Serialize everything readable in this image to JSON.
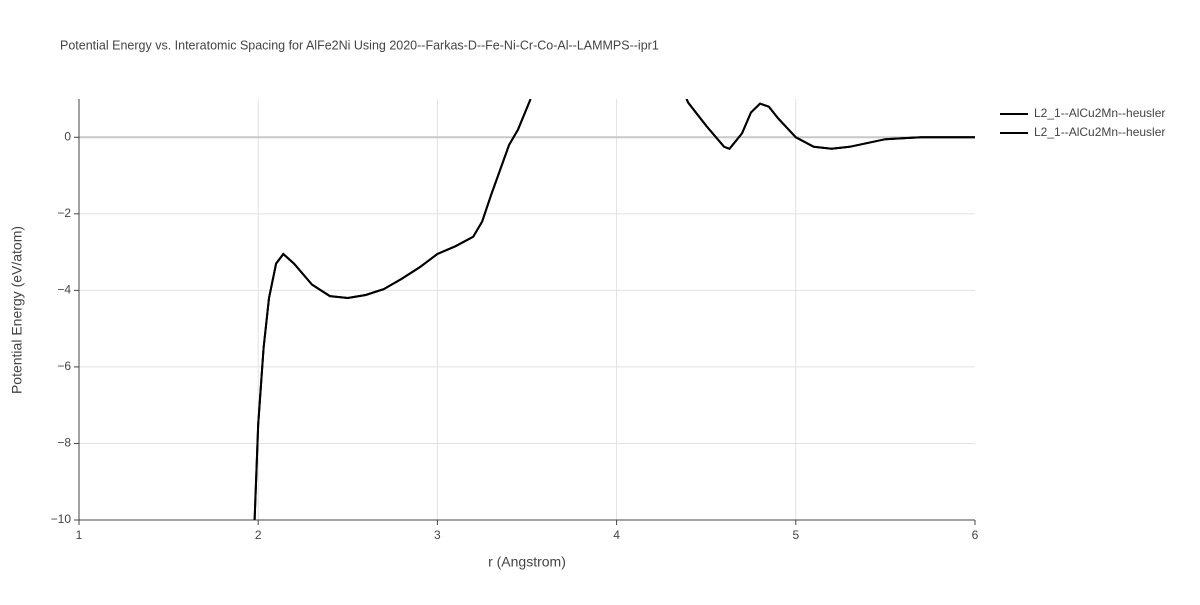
{
  "chart_data": {
    "type": "line",
    "title": "Potential Energy vs. Interatomic Spacing for AlFe2Ni Using 2020--Farkas-D--Fe-Ni-Cr-Co-Al--LAMMPS--ipr1",
    "xlabel": "r (Angstrom)",
    "ylabel": "Potential Energy (eV/atom)",
    "x": [
      1.98,
      2.0,
      2.03,
      2.06,
      2.1,
      2.14,
      2.2,
      2.3,
      2.4,
      2.5,
      2.6,
      2.7,
      2.8,
      2.9,
      3.0,
      3.1,
      3.2,
      3.25,
      3.3,
      3.4,
      3.45,
      3.52,
      null,
      4.39,
      4.4,
      4.5,
      4.6,
      4.63,
      4.7,
      4.75,
      4.8,
      4.85,
      4.9,
      5.0,
      5.1,
      5.2,
      5.3,
      5.5,
      5.7,
      6.0
    ],
    "series": [
      {
        "name": "L2_1--AlCu2Mn--heusler",
        "color": "#000000",
        "values": [
          -10,
          -7.5,
          -5.5,
          -4.2,
          -3.3,
          -3.05,
          -3.3,
          -3.85,
          -4.15,
          -4.2,
          -4.12,
          -3.97,
          -3.7,
          -3.4,
          -3.05,
          -2.85,
          -2.6,
          -2.2,
          -1.5,
          -0.2,
          0.2,
          1,
          null,
          1,
          0.9,
          0.3,
          -0.25,
          -0.3,
          0.1,
          0.65,
          0.88,
          0.8,
          0.5,
          0.0,
          -0.25,
          -0.3,
          -0.25,
          -0.05,
          0,
          0
        ]
      },
      {
        "name": "L2_1--AlCu2Mn--heusler",
        "color": "#000000",
        "values": [
          -10,
          -7.5,
          -5.5,
          -4.2,
          -3.3,
          -3.05,
          -3.3,
          -3.85,
          -4.15,
          -4.2,
          -4.12,
          -3.97,
          -3.7,
          -3.4,
          -3.05,
          -2.85,
          -2.6,
          -2.2,
          -1.5,
          -0.2,
          0.2,
          1,
          null,
          1,
          0.9,
          0.3,
          -0.25,
          -0.3,
          0.1,
          0.65,
          0.88,
          0.8,
          0.5,
          0.0,
          -0.25,
          -0.3,
          -0.25,
          -0.05,
          0,
          0
        ]
      }
    ],
    "xlim": [
      1,
      6
    ],
    "xticks": [
      1,
      2,
      3,
      4,
      5,
      6
    ],
    "ylim": [
      -10,
      1
    ],
    "yticks": [
      {
        "value": -10,
        "label": "−10"
      },
      {
        "value": -8,
        "label": "−8"
      },
      {
        "value": -6,
        "label": "−6"
      },
      {
        "value": -4,
        "label": "−4"
      },
      {
        "value": -2,
        "label": "−2"
      },
      0
    ],
    "grid": true,
    "legend": "right"
  }
}
